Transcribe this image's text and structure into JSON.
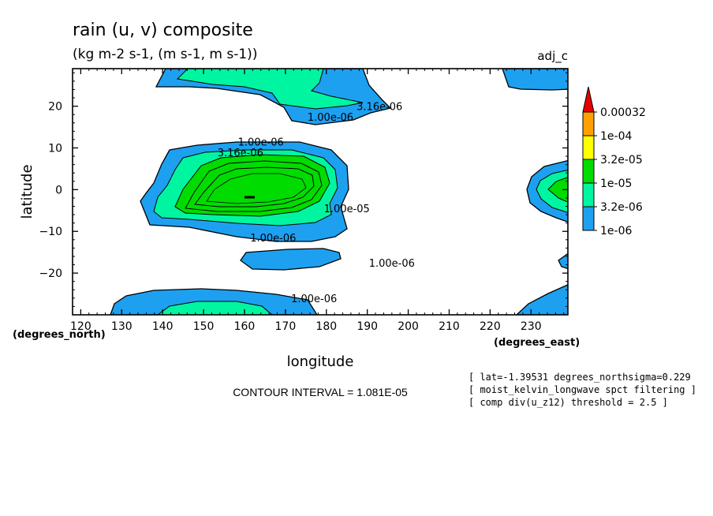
{
  "chart_data": {
    "type": "contour",
    "title": "rain (u, v) composite",
    "subtitle": "(kg m-2 s-1, (m s-1, m s-1))",
    "dataset_label": "adj_c",
    "xlabel": "longitude",
    "ylabel": "latitude",
    "x_unit_label": "(degrees_east)",
    "y_unit_label": "(degrees_north)",
    "xlim": [
      118,
      239
    ],
    "ylim": [
      -30,
      29
    ],
    "x_ticks": [
      120,
      130,
      140,
      150,
      160,
      170,
      180,
      190,
      200,
      210,
      220,
      230
    ],
    "y_ticks": [
      -20,
      -10,
      0,
      10,
      20
    ],
    "contour_interval_text": "CONTOUR INTERVAL = 1.081E-05",
    "legend": {
      "placement": "right",
      "levels": [
        "1e-06",
        "3.2e-06",
        "1e-05",
        "3.2e-05",
        "1e-04",
        "0.00032"
      ],
      "colors": [
        "#1ea0f0",
        "#00f5a0",
        "#00dc00",
        "#ffff00",
        "#ffa000",
        "#e60000"
      ]
    },
    "contour_labels": [
      {
        "text": "3.16e-06",
        "lon": 193,
        "lat": 20
      },
      {
        "text": "1.00e-06",
        "lon": 181,
        "lat": 17.5
      },
      {
        "text": "1.00e-06",
        "lon": 164,
        "lat": 11.5
      },
      {
        "text": "3.16e-06",
        "lon": 159,
        "lat": 9
      },
      {
        "text": "1.00e-05",
        "lon": 185,
        "lat": -4.5
      },
      {
        "text": "1.00e-06",
        "lon": 167,
        "lat": -11.5
      },
      {
        "text": "1.00e-06",
        "lon": 196,
        "lat": -17.5
      },
      {
        "text": "1.00e-06",
        "lon": 177,
        "lat": -26
      }
    ],
    "notes": [
      "[ lat=-1.39531 degrees_northsigma=0.229",
      "[ moist_kelvin_longwave spct filtering ]",
      "[ comp div(u_z12) threshold = 2.5 ]"
    ]
  }
}
